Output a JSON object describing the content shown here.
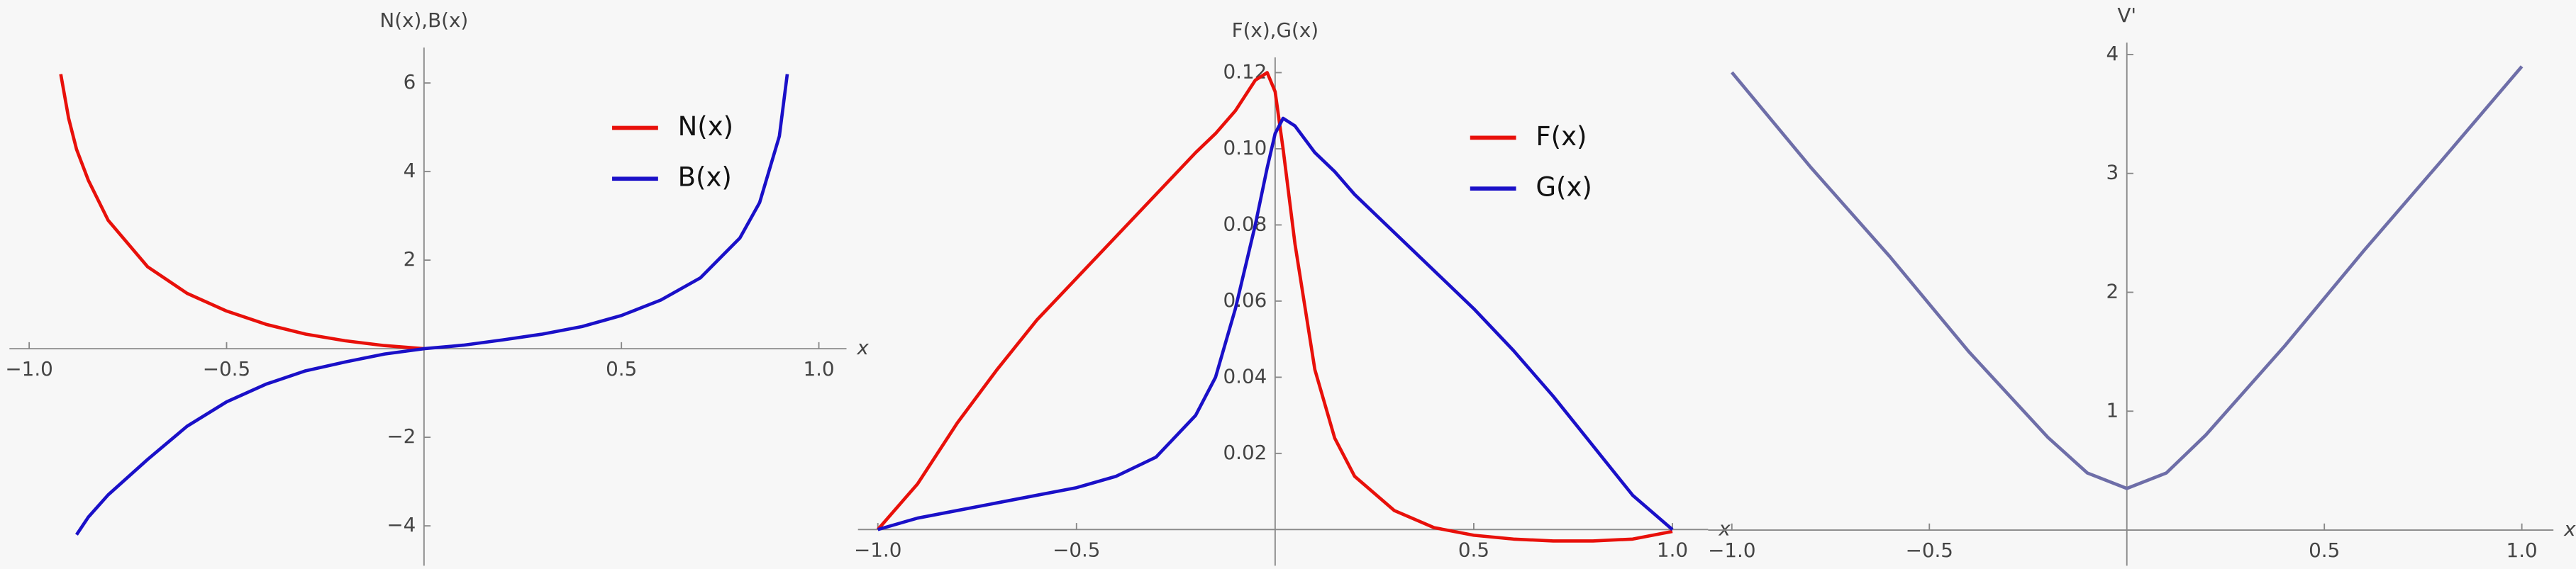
{
  "chart_data": [
    {
      "type": "line",
      "y_label": "N(x),B(x)",
      "x_label": "x",
      "legend": "top-right",
      "x": [
        -0.92,
        -0.9,
        -0.88,
        -0.85,
        -0.8,
        -0.7,
        -0.6,
        -0.5,
        -0.4,
        -0.3,
        -0.2,
        -0.1,
        0,
        0.1,
        0.2,
        0.3,
        0.4,
        0.5,
        0.6,
        0.7,
        0.8,
        0.85,
        0.9,
        0.92
      ],
      "series": [
        {
          "name": "N(x)",
          "color": "#e8100a",
          "values": [
            6.2,
            5.2,
            4.5,
            3.8,
            2.9,
            1.85,
            1.25,
            0.85,
            0.55,
            0.33,
            0.18,
            0.07,
            0,
            null,
            null,
            null,
            null,
            null,
            null,
            null,
            null,
            null,
            null,
            null
          ]
        },
        {
          "name": "B(x)",
          "color": "#1a10c8",
          "values": [
            null,
            null,
            -4.2,
            -3.8,
            -3.3,
            -2.5,
            -1.75,
            -1.2,
            -0.8,
            -0.5,
            -0.3,
            -0.12,
            0,
            0.08,
            0.2,
            0.33,
            0.5,
            0.75,
            1.1,
            1.6,
            2.5,
            3.3,
            4.8,
            6.2
          ]
        }
      ],
      "xlim": [
        -1.05,
        1.07
      ],
      "ylim": [
        -4.9,
        6.8
      ],
      "xticks": [
        {
          "value": -1,
          "label": "−1.0"
        },
        {
          "value": -0.5,
          "label": "−0.5"
        },
        {
          "value": 0.5,
          "label": "0.5"
        },
        {
          "value": 1,
          "label": "1.0"
        }
      ],
      "yticks": [
        {
          "value": -4,
          "label": "−4"
        },
        {
          "value": -2,
          "label": "−2"
        },
        2,
        4,
        6
      ]
    },
    {
      "type": "line",
      "y_label": "F(x),G(x)",
      "x_label": "x",
      "legend": "top-right",
      "x": [
        -1,
        -0.9,
        -0.8,
        -0.7,
        -0.6,
        -0.5,
        -0.4,
        -0.3,
        -0.2,
        -0.15,
        -0.1,
        -0.05,
        -0.02,
        0,
        0.02,
        0.05,
        0.1,
        0.15,
        0.2,
        0.3,
        0.4,
        0.5,
        0.6,
        0.7,
        0.8,
        0.9,
        1
      ],
      "series": [
        {
          "name": "F(x)",
          "color": "#e8100a",
          "values": [
            0,
            0.012,
            0.028,
            0.042,
            0.055,
            0.066,
            0.077,
            0.088,
            0.099,
            0.104,
            0.11,
            0.118,
            0.12,
            0.115,
            0.1,
            0.075,
            0.042,
            0.024,
            0.014,
            0.005,
            0.0005,
            -0.0015,
            -0.0025,
            -0.003,
            -0.003,
            -0.0025,
            -0.0005
          ]
        },
        {
          "name": "G(x)",
          "color": "#1a10c8",
          "values": [
            0,
            0.003,
            0.005,
            0.007,
            0.009,
            0.011,
            0.014,
            0.019,
            0.03,
            0.04,
            0.058,
            0.08,
            0.095,
            0.104,
            0.108,
            0.106,
            0.099,
            0.094,
            0.088,
            0.078,
            0.068,
            0.058,
            0.047,
            0.035,
            0.022,
            0.009,
            0
          ]
        }
      ],
      "xlim": [
        -1.05,
        1.09
      ],
      "ylim": [
        -0.0095,
        0.124
      ],
      "xticks": [
        {
          "value": -1,
          "label": "−1.0"
        },
        {
          "value": -0.5,
          "label": "−0.5"
        },
        {
          "value": 0.5,
          "label": "0.5"
        },
        {
          "value": 1,
          "label": "1.0"
        }
      ],
      "yticks": [
        0.02,
        0.04,
        0.06,
        0.08,
        {
          "value": 0.1,
          "label": "0.10"
        },
        0.12
      ]
    },
    {
      "type": "line",
      "y_label": "V'",
      "x_label": "x",
      "x": [
        -1,
        -0.8,
        -0.6,
        -0.4,
        -0.2,
        -0.1,
        0,
        0.1,
        0.2,
        0.4,
        0.6,
        0.8,
        1
      ],
      "series": [
        {
          "color": "#6e6ea8",
          "values": [
            3.85,
            3.05,
            2.3,
            1.5,
            0.78,
            0.48,
            0.35,
            0.48,
            0.8,
            1.55,
            2.35,
            3.12,
            3.9
          ]
        }
      ],
      "xlim": [
        -1.06,
        1.08
      ],
      "ylim": [
        -0.3,
        4.1
      ],
      "xticks": [
        {
          "value": -1,
          "label": "−1.0"
        },
        {
          "value": -0.5,
          "label": "−0.5"
        },
        {
          "value": 0.5,
          "label": "0.5"
        },
        {
          "value": 1,
          "label": "1.0"
        }
      ],
      "yticks": [
        1,
        2,
        3,
        4
      ]
    }
  ]
}
